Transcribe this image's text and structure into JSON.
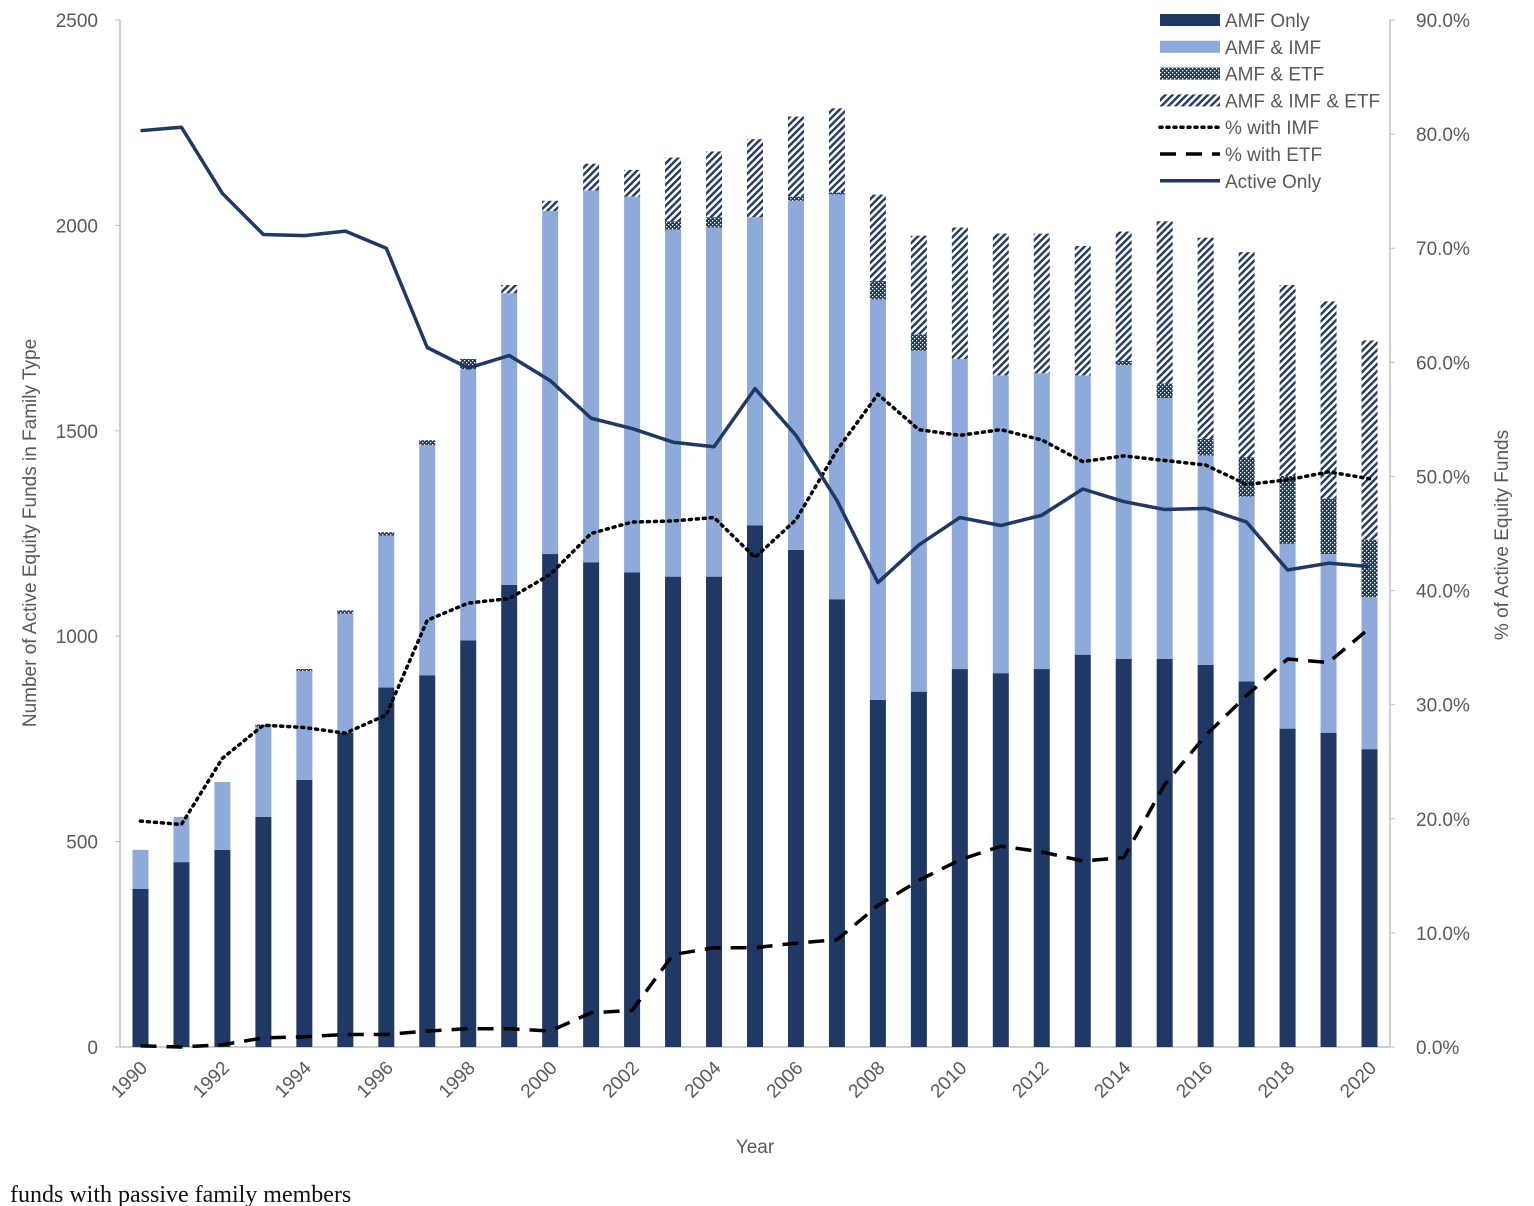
{
  "chart_data": {
    "type": "bar",
    "x_label": "Year",
    "y_label": "Number of Active Equity Funds in Family Type",
    "y2_label": "% of Active Equity Funds",
    "categories": [
      "1990",
      null,
      "1992",
      null,
      "1994",
      null,
      "1996",
      null,
      "1998",
      null,
      "2000",
      null,
      "2002",
      null,
      "2004",
      null,
      "2006",
      null,
      "2008",
      null,
      "2010",
      null,
      "2012",
      null,
      "2014",
      null,
      "2016",
      null,
      "2018",
      null,
      "2020"
    ],
    "stacked": true,
    "ylim": [
      0,
      2500
    ],
    "yticks": [
      0,
      500,
      1000,
      1500,
      2000,
      2500
    ],
    "y2lim": [
      0,
      90
    ],
    "y2ticks": [
      {
        "value": 0,
        "label": "0.0%"
      },
      {
        "value": 10,
        "label": "10.0%"
      },
      {
        "value": 20,
        "label": "20.0%"
      },
      {
        "value": 30,
        "label": "30.0%"
      },
      {
        "value": 40,
        "label": "40.0%"
      },
      {
        "value": 50,
        "label": "50.0%"
      },
      {
        "value": 60,
        "label": "60.0%"
      },
      {
        "value": 70,
        "label": "70.0%"
      },
      {
        "value": 80,
        "label": "80.0%"
      },
      {
        "value": 90,
        "label": "90.0%"
      }
    ],
    "legend": "top-right",
    "series": [
      {
        "name": "AMF Only",
        "type": "bar",
        "color": "#1f3864",
        "pattern": "solid",
        "values": [
          385,
          450,
          480,
          560,
          650,
          765,
          875,
          905,
          990,
          1125,
          1200,
          1180,
          1155,
          1145,
          1145,
          1270,
          1210,
          1090,
          845,
          865,
          920,
          910,
          920,
          955,
          945,
          945,
          930,
          890,
          775,
          765,
          725
        ]
      },
      {
        "name": "AMF & IMF",
        "type": "bar",
        "color": "#8eaadb",
        "pattern": "solid",
        "values": [
          95,
          110,
          165,
          220,
          265,
          290,
          370,
          560,
          660,
          710,
          835,
          905,
          915,
          845,
          850,
          750,
          850,
          985,
          975,
          830,
          755,
          725,
          720,
          680,
          715,
          635,
          510,
          450,
          450,
          435,
          370
        ]
      },
      {
        "name": "AMF & ETF",
        "type": "bar",
        "color": "#1f3864",
        "pattern": "dense",
        "values": [
          0,
          0,
          0,
          5,
          5,
          8,
          8,
          12,
          25,
          0,
          0,
          0,
          0,
          20,
          25,
          0,
          10,
          5,
          45,
          40,
          0,
          0,
          0,
          0,
          10,
          35,
          40,
          95,
          165,
          135,
          140
        ]
      },
      {
        "name": "AMF & IMF & ETF",
        "type": "bar",
        "color": "#1f3864",
        "pattern": "hatch",
        "values": [
          0,
          0,
          0,
          0,
          0,
          0,
          0,
          0,
          0,
          20,
          25,
          65,
          65,
          155,
          160,
          190,
          195,
          205,
          210,
          240,
          320,
          345,
          340,
          315,
          315,
          395,
          490,
          500,
          465,
          480,
          485
        ]
      },
      {
        "name": "% with IMF",
        "type": "line",
        "axis": "y2",
        "color": "#000000",
        "style": "dotted",
        "values": [
          19.8,
          19.5,
          25.3,
          28.2,
          28.0,
          27.5,
          29.1,
          37.4,
          38.9,
          39.3,
          41.4,
          45.0,
          46.0,
          46.1,
          46.4,
          42.9,
          46.2,
          52.3,
          57.2,
          54.1,
          53.6,
          54.1,
          53.2,
          51.3,
          51.8,
          51.4,
          51.0,
          49.3,
          49.7,
          50.4,
          49.8
        ]
      },
      {
        "name": "% with ETF",
        "type": "line",
        "axis": "y2",
        "color": "#000000",
        "style": "dashed",
        "values": [
          0.1,
          0.0,
          0.2,
          0.8,
          0.9,
          1.1,
          1.1,
          1.4,
          1.6,
          1.6,
          1.4,
          3.0,
          3.2,
          8.1,
          8.7,
          8.7,
          9.1,
          9.4,
          12.4,
          14.6,
          16.4,
          17.6,
          17.1,
          16.3,
          16.6,
          23.0,
          27.3,
          30.8,
          34.0,
          33.7,
          36.7
        ]
      },
      {
        "name": "Active Only",
        "type": "line",
        "axis": "y2",
        "color": "#203864",
        "style": "solid",
        "values": [
          80.3,
          80.6,
          74.8,
          71.2,
          71.1,
          71.5,
          70.0,
          61.3,
          59.5,
          60.6,
          58.4,
          55.1,
          54.2,
          53.0,
          52.6,
          57.7,
          53.6,
          47.9,
          40.7,
          44.0,
          46.4,
          45.7,
          46.6,
          48.9,
          47.8,
          47.1,
          47.2,
          46.0,
          41.8,
          42.4,
          42.1
        ]
      }
    ]
  },
  "caption": "funds with passive family members"
}
